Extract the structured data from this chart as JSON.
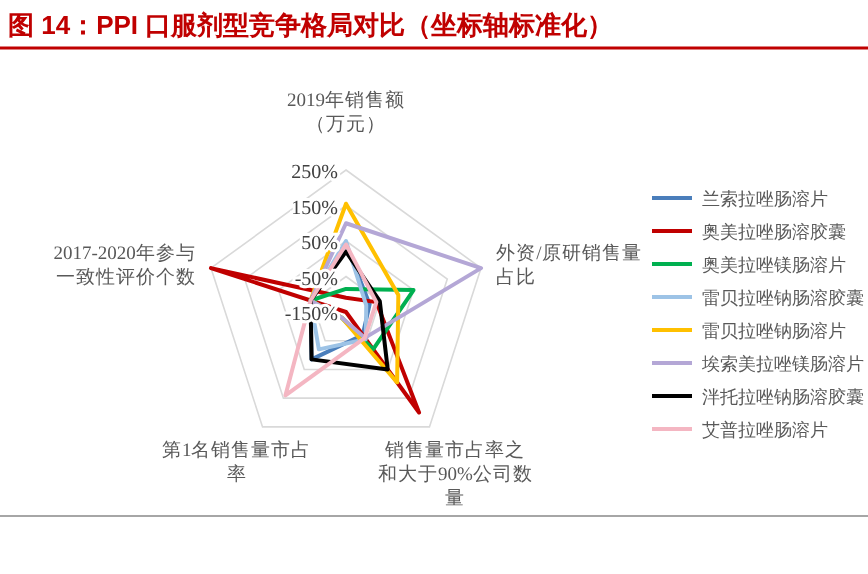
{
  "chart_data": {
    "type": "radar",
    "title": "图 14：PPI 口服剂型竞争格局对比（坐标轴标准化）",
    "categories": [
      "2019年销售额（万元）",
      "外资/原研销售量占比",
      "销售量市占率之和大于90%公司数量",
      "第1名销售量市占率",
      "2017-2020年参与一致性评价个数"
    ],
    "ylim": [
      -150,
      250
    ],
    "yticks": [
      {
        "value": -150,
        "label": "-150%"
      },
      {
        "value": -50,
        "label": "-50%"
      },
      {
        "value": 50,
        "label": "50%"
      },
      {
        "value": 150,
        "label": "150%"
      },
      {
        "value": 250,
        "label": "250%"
      }
    ],
    "grid": true,
    "legend": "right",
    "series": [
      {
        "name": "兰索拉唑肠溶片",
        "color": "#4a7ebb",
        "values": [
          40,
          -80,
          -70,
          15,
          -45
        ]
      },
      {
        "name": "奥美拉唑肠溶胶囊",
        "color": "#c00000",
        "values": [
          -110,
          -60,
          200,
          -150,
          250
        ]
      },
      {
        "name": "奥美拉唑镁肠溶片",
        "color": "#00b050",
        "values": [
          -85,
          50,
          -20,
          -130,
          -45
        ]
      },
      {
        "name": "雷贝拉唑钠肠溶胶囊",
        "color": "#9dc3e6",
        "values": [
          50,
          -90,
          -55,
          -20,
          -45
        ]
      },
      {
        "name": "雷贝拉唑钠肠溶片",
        "color": "#ffc000",
        "values": [
          155,
          5,
          95,
          -130,
          -45
        ]
      },
      {
        "name": "埃索美拉唑镁肠溶片",
        "color": "#b4a7d6",
        "values": [
          100,
          250,
          -60,
          -130,
          -45
        ]
      },
      {
        "name": "泮托拉唑钠肠溶胶囊",
        "color": "#000000",
        "values": [
          20,
          -50,
          50,
          15,
          -45
        ]
      },
      {
        "name": "艾普拉唑肠溶片",
        "color": "#f4b6c2",
        "values": [
          40,
          -60,
          -60,
          140,
          -45
        ]
      }
    ]
  }
}
